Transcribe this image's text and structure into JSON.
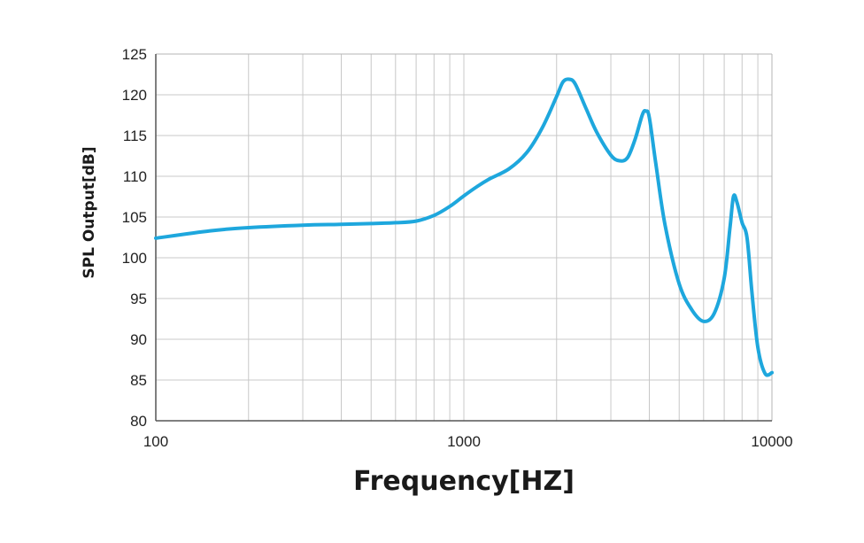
{
  "chart_data": {
    "type": "line",
    "title": "",
    "xlabel": "Frequency[HZ]",
    "ylabel": "SPL Output[dB]",
    "xscale": "log",
    "xlim": [
      100,
      10000
    ],
    "ylim": [
      80,
      125
    ],
    "x_ticks": [
      100,
      1000,
      10000
    ],
    "x_tick_labels": [
      "100",
      "1000",
      "10000"
    ],
    "y_ticks": [
      80,
      85,
      90,
      95,
      100,
      105,
      110,
      115,
      120,
      125
    ],
    "y_tick_labels": [
      "80",
      "85",
      "90",
      "95",
      "100",
      "105",
      "110",
      "115",
      "120",
      "125"
    ],
    "grid": true,
    "line_color": "#1ea7dd",
    "series": [
      {
        "x": [
          100,
          150,
          200,
          300,
          400,
          500,
          600,
          700,
          800,
          900,
          1000,
          1100,
          1200,
          1400,
          1600,
          1800,
          2000,
          2100,
          2200,
          2300,
          2500,
          2700,
          3000,
          3200,
          3400,
          3600,
          3800,
          3900,
          4000,
          4200,
          4500,
          5000,
          5500,
          6000,
          6500,
          7000,
          7300,
          7500,
          7700,
          8000,
          8300,
          8600,
          9000,
          9500,
          10000
        ],
        "y": [
          102.4,
          103.3,
          103.7,
          104.0,
          104.1,
          104.2,
          104.3,
          104.5,
          105.2,
          106.3,
          107.6,
          108.7,
          109.6,
          110.9,
          112.9,
          116.0,
          119.8,
          121.6,
          121.9,
          121.3,
          118.2,
          115.4,
          112.6,
          111.9,
          112.3,
          114.6,
          117.6,
          118.0,
          117.2,
          111.5,
          104.0,
          96.8,
          93.6,
          92.2,
          93.2,
          97.5,
          103.5,
          107.5,
          106.8,
          104.3,
          102.5,
          96.0,
          89.0,
          85.8,
          85.9
        ]
      }
    ]
  }
}
